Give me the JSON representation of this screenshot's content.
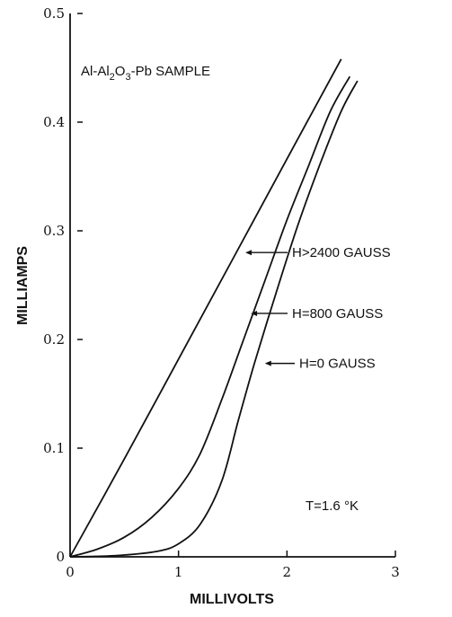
{
  "chart_data": {
    "type": "line",
    "title": "Al-Al2O3-Pb SAMPLE",
    "title_parts": {
      "p1": "Al-Al",
      "s1": "2",
      "p2": "O",
      "s2": "3",
      "p3": "-Pb SAMPLE"
    },
    "xlabel": "MILLIVOLTS",
    "ylabel": "MILLIAMPS",
    "xlim": [
      0,
      3
    ],
    "ylim": [
      0,
      0.5
    ],
    "x_ticks": [
      0,
      1,
      2,
      3
    ],
    "x_tick_labels": [
      "0",
      "1",
      "2",
      "3"
    ],
    "y_ticks": [
      0,
      0.1,
      0.2,
      0.3,
      0.4,
      0.5
    ],
    "y_tick_labels": [
      "0",
      "0.1",
      "0.2",
      "0.3",
      "0.4",
      "0.5"
    ],
    "grid": false,
    "annotation": "T=1.6 °K",
    "series": [
      {
        "name": "H>2400 GAUSS",
        "x": [
          0,
          0.5,
          1.0,
          1.5,
          2.0,
          2.5
        ],
        "y": [
          0,
          0.09,
          0.182,
          0.274,
          0.366,
          0.458
        ],
        "label_at": {
          "x": 1.6,
          "y": 0.28
        }
      },
      {
        "name": "H=800 GAUSS",
        "x": [
          0,
          0.25,
          0.5,
          0.75,
          1.0,
          1.2,
          1.4,
          1.6,
          1.8,
          2.0,
          2.2,
          2.4,
          2.58
        ],
        "y": [
          0,
          0.007,
          0.018,
          0.036,
          0.063,
          0.095,
          0.145,
          0.2,
          0.255,
          0.31,
          0.36,
          0.41,
          0.442
        ],
        "label_at": {
          "x": 1.65,
          "y": 0.224
        }
      },
      {
        "name": "H=0 GAUSS",
        "x": [
          0,
          0.4,
          0.8,
          1.0,
          1.2,
          1.4,
          1.55,
          1.7,
          1.9,
          2.1,
          2.3,
          2.5,
          2.65
        ],
        "y": [
          0,
          0.001,
          0.005,
          0.012,
          0.03,
          0.07,
          0.125,
          0.178,
          0.243,
          0.305,
          0.36,
          0.41,
          0.438
        ],
        "label_at": {
          "x": 1.78,
          "y": 0.178
        }
      }
    ]
  }
}
